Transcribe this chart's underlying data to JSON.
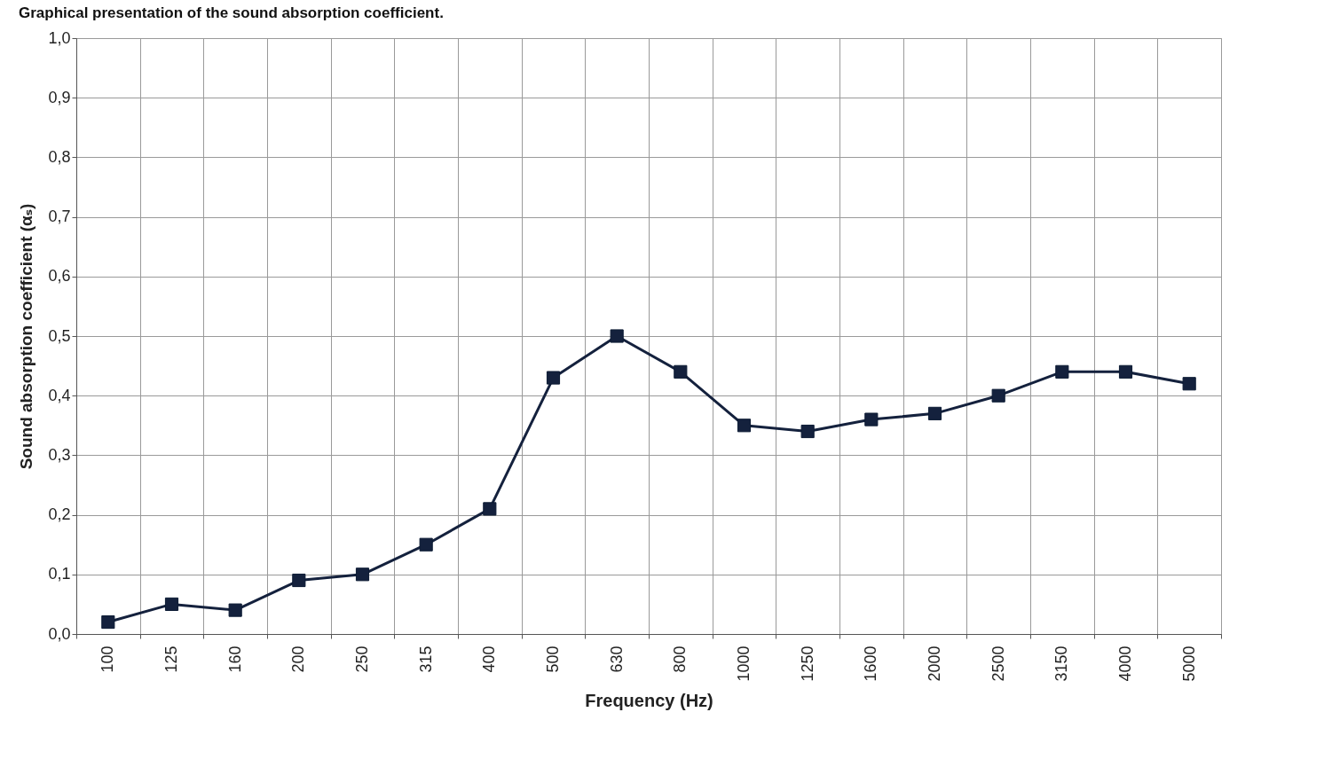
{
  "chart_data": {
    "type": "line",
    "title": "Graphical presentation of the sound absorption coefficient.",
    "xlabel": "Frequency (Hz)",
    "ylabel": "Sound absorption coefficient (αₛ)",
    "categories": [
      "100",
      "125",
      "160",
      "200",
      "250",
      "315",
      "400",
      "500",
      "630",
      "800",
      "1000",
      "1250",
      "1600",
      "2000",
      "2500",
      "3150",
      "4000",
      "5000"
    ],
    "series": [
      {
        "color": "#14213d",
        "values": [
          0.02,
          0.05,
          0.04,
          0.09,
          0.1,
          0.15,
          0.21,
          0.43,
          0.5,
          0.44,
          0.35,
          0.34,
          0.36,
          0.37,
          0.4,
          0.44,
          0.44,
          0.42
        ]
      }
    ],
    "ylim": [
      0,
      1
    ],
    "yticks": [
      {
        "value": 0,
        "label": "0,0"
      },
      {
        "value": 0.1,
        "label": "0,1"
      },
      {
        "value": 0.2,
        "label": "0,2"
      },
      {
        "value": 0.3,
        "label": "0,3"
      },
      {
        "value": 0.4,
        "label": "0,4"
      },
      {
        "value": 0.5,
        "label": "0,5"
      },
      {
        "value": 0.6,
        "label": "0,6"
      },
      {
        "value": 0.7,
        "label": "0,7"
      },
      {
        "value": 0.8,
        "label": "0,8"
      },
      {
        "value": 0.9,
        "label": "0,9"
      },
      {
        "value": 1,
        "label": "1,0"
      }
    ],
    "grid": true,
    "marker": "square",
    "line_style": "solid"
  }
}
